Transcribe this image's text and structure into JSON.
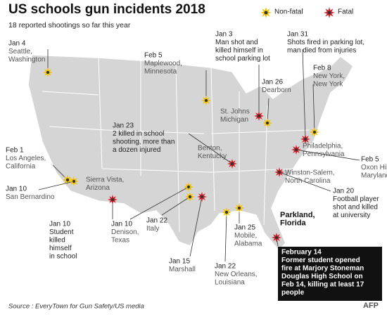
{
  "header": {
    "title": "US schools gun incidents 2018",
    "subtitle": "18 reported shootings so far this year"
  },
  "legend": {
    "non_fatal": {
      "label": "Non-fatal",
      "color": "#f2c200"
    },
    "fatal": {
      "label": "Fatal",
      "color": "#d3222a"
    }
  },
  "incidents": [
    {
      "date": "Jan 4",
      "place": [
        "Seattle,",
        "Washington"
      ],
      "fatal": false
    },
    {
      "date": "Feb 5",
      "place": [
        "Maplewood,",
        "Minnesota"
      ],
      "fatal": false
    },
    {
      "date": "Jan 3",
      "description": [
        "Man shot and",
        "killed himself in",
        "school parking lot"
      ],
      "place": [
        "St. Johns",
        "Michigan"
      ],
      "fatal": true
    },
    {
      "date": "Jan 26",
      "place": [
        "Dearborn"
      ],
      "fatal": false
    },
    {
      "date": "Jan 31",
      "description": [
        "Shots fired in parking lot,",
        "man died from injuries"
      ],
      "place": [
        "Philadelphia,",
        "Pennsylvania"
      ],
      "fatal": true
    },
    {
      "date": "Feb 8",
      "place": [
        "New York,",
        "New York"
      ],
      "fatal": false
    },
    {
      "date": "Jan 23",
      "description": [
        "2 killed in school",
        "shooting, more than",
        "a dozen injured"
      ],
      "place": [
        "Benton,",
        "Kentucky"
      ],
      "fatal": true
    },
    {
      "date": "Feb 5",
      "place": [
        "Oxon Hill,",
        "Maryland"
      ],
      "fatal": true
    },
    {
      "date": "Feb 1",
      "place": [
        "Los Angeles,",
        "California"
      ],
      "fatal": false
    },
    {
      "date": "Jan 10",
      "place": [
        "San Bernardino"
      ],
      "fatal": false
    },
    {
      "date": "Jan 10",
      "description": [
        "Student",
        "killed",
        "himself",
        "in school"
      ],
      "place": [
        "Sierra Vista,",
        "Arizona"
      ],
      "fatal": true
    },
    {
      "date": "Jan 20",
      "description": [
        "Football player",
        "shot and killed",
        "at university"
      ],
      "place": [
        "Winston-Salem,",
        "North Carolina"
      ],
      "fatal": true
    },
    {
      "date": "Jan 10",
      "place": [
        "Denison,",
        "Texas"
      ],
      "fatal": false
    },
    {
      "date": "Jan 22",
      "place": [
        "Italy"
      ],
      "fatal": false
    },
    {
      "date": "Jan 15",
      "place": [
        "Marshall"
      ],
      "fatal": true
    },
    {
      "date": "Jan 22",
      "place": [
        "New Orleans,",
        "Louisiana"
      ],
      "fatal": false
    },
    {
      "date": "Jan 25",
      "place": [
        "Mobile,",
        "Alabama"
      ],
      "fatal": false
    },
    {
      "date": "February 14",
      "description": [
        "Former student opened",
        "fire at Marjory Stoneman",
        "Douglas High School on",
        "Feb 14, killing at least 17",
        "people"
      ],
      "place": [
        "Parkland,",
        "Florida"
      ],
      "fatal": true
    }
  ],
  "footer": {
    "source": "Source : EveryTown for Gun Safety/US media",
    "credit": "AFP"
  }
}
